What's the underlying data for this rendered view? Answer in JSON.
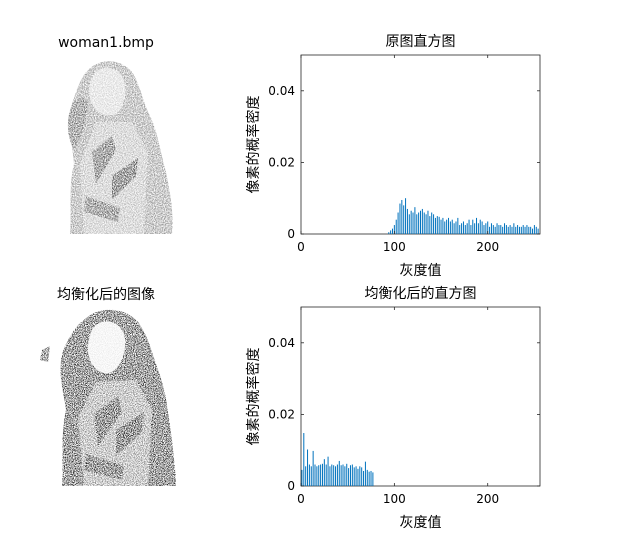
{
  "figure": {
    "left_image_titles": [
      "woman1.bmp",
      "均衡化后的图像"
    ]
  },
  "chart_data": [
    {
      "type": "bar",
      "title": "原图直方图",
      "xlabel": "灰度值",
      "ylabel": "像素的概率密度",
      "xlim": [
        0,
        256
      ],
      "ylim": [
        0,
        0.05
      ],
      "xticks": [
        0,
        100,
        200
      ],
      "yticks": [
        0,
        0.02,
        0.04
      ],
      "ytick_labels": [
        "0",
        "0.02",
        "0.04"
      ],
      "bar_color": "#0072BD",
      "x": [
        94,
        96,
        98,
        100,
        102,
        104,
        106,
        108,
        110,
        112,
        114,
        116,
        118,
        120,
        122,
        124,
        126,
        128,
        130,
        132,
        134,
        136,
        138,
        140,
        142,
        144,
        146,
        148,
        150,
        152,
        154,
        156,
        158,
        160,
        162,
        164,
        166,
        168,
        170,
        172,
        174,
        176,
        178,
        180,
        182,
        184,
        186,
        188,
        190,
        192,
        194,
        196,
        198,
        200,
        202,
        204,
        206,
        208,
        210,
        212,
        214,
        216,
        218,
        220,
        222,
        224,
        226,
        228,
        230,
        232,
        234,
        236,
        238,
        240,
        242,
        244,
        246,
        248,
        250,
        252,
        254
      ],
      "values": [
        0.0005,
        0.001,
        0.0015,
        0.0025,
        0.004,
        0.006,
        0.0085,
        0.0095,
        0.008,
        0.01,
        0.007,
        0.0055,
        0.0065,
        0.006,
        0.0075,
        0.0055,
        0.006,
        0.0065,
        0.007,
        0.006,
        0.0055,
        0.0065,
        0.005,
        0.006,
        0.0055,
        0.0045,
        0.005,
        0.0048,
        0.004,
        0.0045,
        0.0035,
        0.004,
        0.0045,
        0.0035,
        0.004,
        0.003,
        0.0035,
        0.0045,
        0.0025,
        0.003,
        0.0035,
        0.0025,
        0.003,
        0.004,
        0.0025,
        0.004,
        0.003,
        0.0045,
        0.003,
        0.004,
        0.0035,
        0.0025,
        0.003,
        0.0035,
        0.002,
        0.003,
        0.0025,
        0.002,
        0.003,
        0.0025,
        0.0025,
        0.002,
        0.003,
        0.0025,
        0.002,
        0.0025,
        0.002,
        0.003,
        0.002,
        0.0025,
        0.002,
        0.002,
        0.0025,
        0.002,
        0.0025,
        0.002,
        0.002,
        0.0015,
        0.0025,
        0.002,
        0.0015
      ]
    },
    {
      "type": "bar",
      "title": "均衡化后的直方图",
      "xlabel": "灰度值",
      "ylabel": "像素的概率密度",
      "xlim": [
        0,
        256
      ],
      "ylim": [
        0,
        0.05
      ],
      "xticks": [
        0,
        100,
        200
      ],
      "yticks": [
        0,
        0.02,
        0.04
      ],
      "ytick_labels": [
        "0",
        "0.02",
        "0.04"
      ],
      "bar_color": "#0072BD",
      "x": [
        1,
        3,
        5,
        7,
        9,
        11,
        13,
        15,
        17,
        19,
        21,
        23,
        25,
        27,
        29,
        31,
        33,
        35,
        37,
        39,
        41,
        43,
        45,
        47,
        49,
        51,
        53,
        55,
        57,
        59,
        61,
        63,
        65,
        67,
        69,
        71,
        73,
        75,
        77
      ],
      "values": [
        0.0045,
        0.0148,
        0.0055,
        0.0102,
        0.006,
        0.0055,
        0.0098,
        0.006,
        0.0055,
        0.0058,
        0.006,
        0.0062,
        0.0075,
        0.006,
        0.0082,
        0.0055,
        0.006,
        0.0058,
        0.0055,
        0.006,
        0.007,
        0.0058,
        0.006,
        0.0055,
        0.0062,
        0.005,
        0.0058,
        0.006,
        0.0052,
        0.0055,
        0.0048,
        0.0055,
        0.0052,
        0.0042,
        0.0068,
        0.0045,
        0.004,
        0.0042,
        0.0038
      ]
    }
  ]
}
